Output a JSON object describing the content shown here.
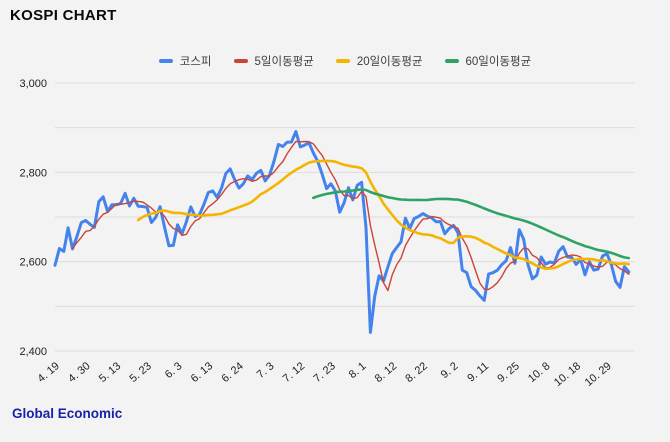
{
  "title": "KOSPI CHART",
  "footer": {
    "source": "Global Economic"
  },
  "colors": {
    "background": "#f3f3f3",
    "gridline": "#dcdcdc",
    "axis_text": "#222222",
    "kospi_blue": "#4583ec",
    "ma5_red": "#cc4437",
    "ma20_yellow": "#f4b400",
    "ma60_green": "#2fa364",
    "footer_blue": "#1b22a8"
  },
  "legend": {
    "items": [
      {
        "label": "코스피",
        "color": "#4583ec"
      },
      {
        "label": "5일이동평균",
        "color": "#cc4437"
      },
      {
        "label": "20일이동평균",
        "color": "#f4b400"
      },
      {
        "label": "60일이동평균",
        "color": "#2fa364"
      }
    ]
  },
  "chart_data": {
    "type": "line",
    "title": "KOSPI CHART",
    "xlabel": "",
    "ylabel": "",
    "ylim": [
      2400,
      3000
    ],
    "grid": true,
    "grid_step": 100,
    "y_label_step": 200,
    "y_tick_labels": [
      "2,400",
      "2,600",
      "2,800",
      "3,000"
    ],
    "legend_position": "top",
    "x_tick_indices": [
      0,
      7,
      14,
      21,
      28,
      35,
      42,
      49,
      56,
      63,
      70,
      77,
      84,
      91,
      98,
      105,
      112,
      119,
      126
    ],
    "x_tick_labels": [
      "4. 19",
      "4. 30",
      "5. 13",
      "5. 23",
      "6. 3",
      "6. 13",
      "6. 24",
      "7. 3",
      "7. 12",
      "7. 23",
      "8. 1",
      "8. 12",
      "8. 22",
      "9. 2",
      "9. 11",
      "9. 25",
      "10. 8",
      "10. 18",
      "10. 29"
    ],
    "series": [
      {
        "name": "코스피",
        "kind": "raw",
        "color": "#4583ec",
        "stroke_width": 3,
        "values": [
          2591.86,
          2629.44,
          2623.02,
          2675.75,
          2628.62,
          2656.33,
          2687.44,
          2692.06,
          2683.65,
          2676.63,
          2734.36,
          2745.05,
          2712.14,
          2727.63,
          2727.21,
          2730.34,
          2753.0,
          2724.62,
          2742.14,
          2724.18,
          2723.46,
          2721.81,
          2687.6,
          2699.11,
          2722.99,
          2677.3,
          2635.44,
          2636.52,
          2682.52,
          2662.1,
          2689.5,
          2722.67,
          2701.17,
          2705.32,
          2728.17,
          2754.89,
          2758.42,
          2744.1,
          2763.92,
          2797.33,
          2807.63,
          2784.26,
          2764.73,
          2774.39,
          2792.05,
          2784.06,
          2797.82,
          2804.31,
          2780.86,
          2794.01,
          2824.94,
          2862.23,
          2857.76,
          2867.38,
          2867.99,
          2891.35,
          2857.0,
          2860.92,
          2866.09,
          2843.29,
          2824.35,
          2795.46,
          2763.51,
          2774.29,
          2758.71,
          2710.65,
          2731.9,
          2765.53,
          2738.19,
          2770.69,
          2777.68,
          2676.19,
          2441.55,
          2522.15,
          2568.41,
          2556.73,
          2588.43,
          2618.3,
          2631.5,
          2644.5,
          2697.23,
          2674.36,
          2696.63,
          2701.13,
          2707.67,
          2701.69,
          2698.01,
          2689.25,
          2689.83,
          2662.28,
          2674.31,
          2681.0,
          2664.63,
          2580.8,
          2575.5,
          2544.28,
          2535.93,
          2523.43,
          2513.37,
          2572.09,
          2575.41,
          2580.8,
          2593.37,
          2602.01,
          2631.68,
          2596.32,
          2671.57,
          2649.78,
          2593.27,
          2561.69,
          2569.71,
          2610.38,
          2594.36,
          2599.16,
          2596.91,
          2623.29,
          2633.45,
          2610.36,
          2609.3,
          2593.82,
          2604.92,
          2570.7,
          2599.62,
          2581.03,
          2583.27,
          2612.43,
          2617.8,
          2593.79,
          2556.15,
          2542.36,
          2588.97,
          2576.88
        ]
      },
      {
        "name": "5일이동평균",
        "kind": "moving_average",
        "window": 5,
        "color": "#cc4437",
        "stroke_width": 1.4
      },
      {
        "name": "20일이동평균",
        "kind": "moving_average",
        "window": 20,
        "color": "#f4b400",
        "stroke_width": 2.6
      },
      {
        "name": "60일이동평균",
        "kind": "moving_average",
        "window": 60,
        "color": "#2fa364",
        "stroke_width": 2.6
      }
    ]
  }
}
